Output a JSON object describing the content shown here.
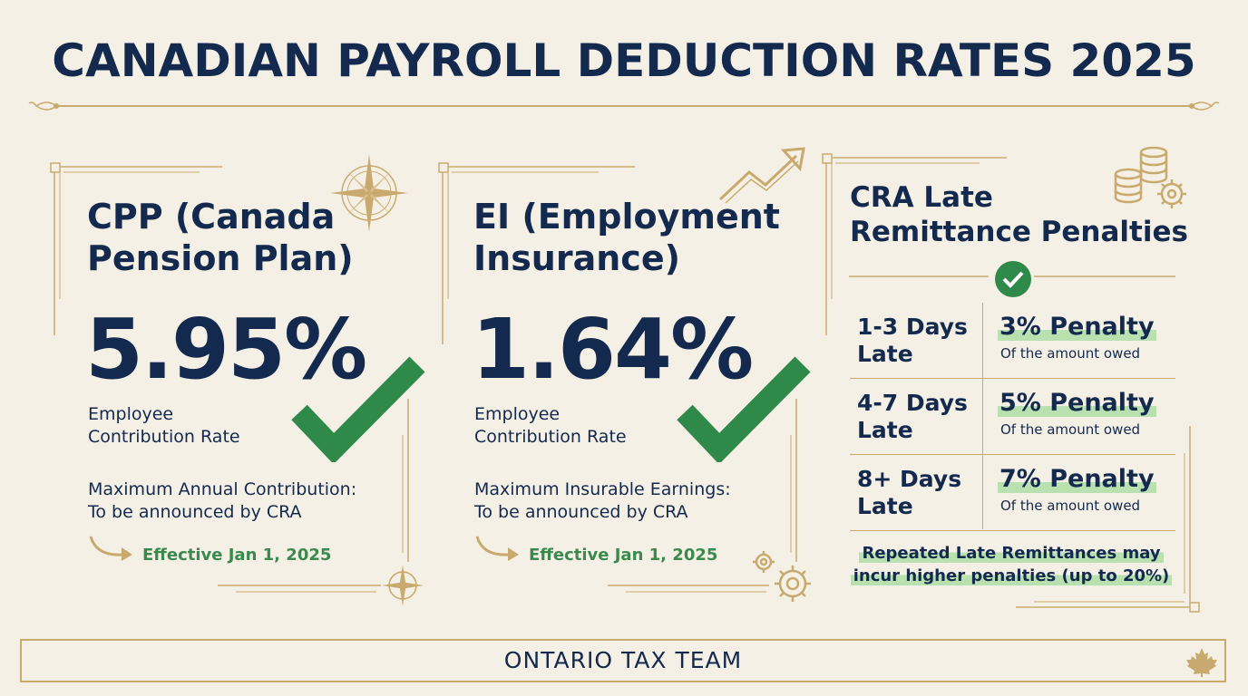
{
  "title": "CANADIAN PAYROLL DEDUCTION RATES 2025",
  "cpp": {
    "title_line1": "CPP (Canada",
    "title_line2": "Pension Plan)",
    "rate": "5.95%",
    "rate_label_line1": "Employee",
    "rate_label_line2": "Contribution Rate",
    "max_line1": "Maximum Annual Contribution:",
    "max_line2": "To be announced by CRA",
    "effective": "Effective Jan 1, 2025"
  },
  "ei": {
    "title_line1": "EI (Employment",
    "title_line2": "Insurance)",
    "rate": "1.64%",
    "rate_label_line1": "Employee",
    "rate_label_line2": "Contribution Rate",
    "max_line1": "Maximum Insurable Earnings:",
    "max_line2": "To be announced by CRA",
    "effective": "Effective Jan 1, 2025"
  },
  "penalties": {
    "title_line1": "CRA Late",
    "title_line2": "Remittance Penalties",
    "rows": [
      {
        "days_line1": "1-3 Days",
        "days_line2": "Late",
        "penalty": "3% Penalty",
        "desc": "Of the amount owed"
      },
      {
        "days_line1": "4-7 Days",
        "days_line2": "Late",
        "penalty": "5% Penalty",
        "desc": "Of the amount owed"
      },
      {
        "days_line1": "8+ Days",
        "days_line2": "Late",
        "penalty": "7% Penalty",
        "desc": "Of the amount owed"
      }
    ],
    "note_line1": "Repeated Late Remittances may",
    "note_line2": "incur higher penalties (up to 20%)"
  },
  "footer": "ONTARIO TAX TEAM",
  "colors": {
    "background": "#f5f0e6",
    "navy": "#132a4e",
    "gold": "#c9aa6e",
    "green": "#2f8a4a",
    "highlight": "#b9e1b0"
  },
  "icons": [
    "compass-icon",
    "checkmark-icon",
    "trend-arrow-icon",
    "coins-gear-icon",
    "gear-icon",
    "maple-leaf-icon",
    "curved-arrow-icon"
  ]
}
